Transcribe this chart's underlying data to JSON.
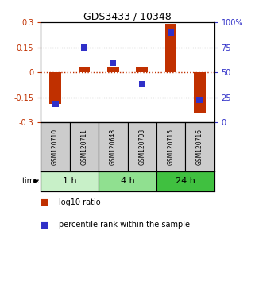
{
  "title": "GDS3433 / 10348",
  "samples": [
    "GSM120710",
    "GSM120711",
    "GSM120648",
    "GSM120708",
    "GSM120715",
    "GSM120716"
  ],
  "groups": [
    {
      "label": "1 h",
      "indices": [
        0,
        1
      ],
      "color": "#c8f0c8"
    },
    {
      "label": "4 h",
      "indices": [
        2,
        3
      ],
      "color": "#90e090"
    },
    {
      "label": "24 h",
      "indices": [
        4,
        5
      ],
      "color": "#40c040"
    }
  ],
  "log10_ratio": [
    -0.19,
    0.03,
    0.03,
    0.03,
    0.29,
    -0.24
  ],
  "percentile_rank": [
    18,
    75,
    60,
    38,
    90,
    22
  ],
  "ylim_left": [
    -0.3,
    0.3
  ],
  "ylim_right": [
    0,
    100
  ],
  "yticks_left": [
    -0.3,
    -0.15,
    0,
    0.15,
    0.3
  ],
  "yticks_right": [
    0,
    25,
    50,
    75,
    100
  ],
  "ytick_labels_left": [
    "-0.3",
    "-0.15",
    "0",
    "0.15",
    "0.3"
  ],
  "ytick_labels_right": [
    "0",
    "25",
    "50",
    "75",
    "100%"
  ],
  "hlines": [
    -0.15,
    0,
    0.15
  ],
  "bar_color": "#c03000",
  "dot_color": "#3030c8",
  "bar_width": 0.4,
  "dot_size": 40,
  "bg_color": "#ffffff",
  "label_box_color": "#cccccc",
  "legend_bar_label": "log10 ratio",
  "legend_dot_label": "percentile rank within the sample",
  "time_label": "time"
}
